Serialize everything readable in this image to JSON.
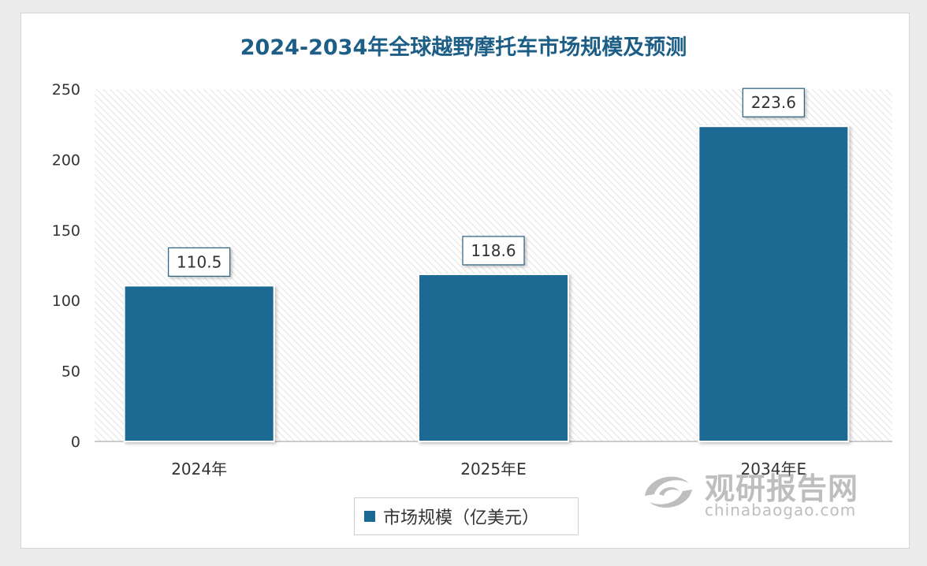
{
  "chart_data": {
    "type": "bar",
    "title": "2024-2034年全球越野摩托车市场规模及预测",
    "categories": [
      "2024年",
      "2025年E",
      "2034年E"
    ],
    "series": [
      {
        "name": "市场规模（亿美元）",
        "values": [
          110.5,
          118.6,
          223.6
        ]
      }
    ],
    "ylim": [
      0,
      250
    ],
    "yticks": [
      0,
      50,
      100,
      150,
      200,
      250
    ],
    "grid": false,
    "legend_position": "bottom",
    "bar_color": "#1b6a94",
    "data_labels": [
      "110.5",
      "118.6",
      "223.6"
    ]
  },
  "watermark": {
    "name": "观研报告网",
    "url": "chinabaogao.com",
    "logo_icon": "swirl-logo-icon"
  }
}
